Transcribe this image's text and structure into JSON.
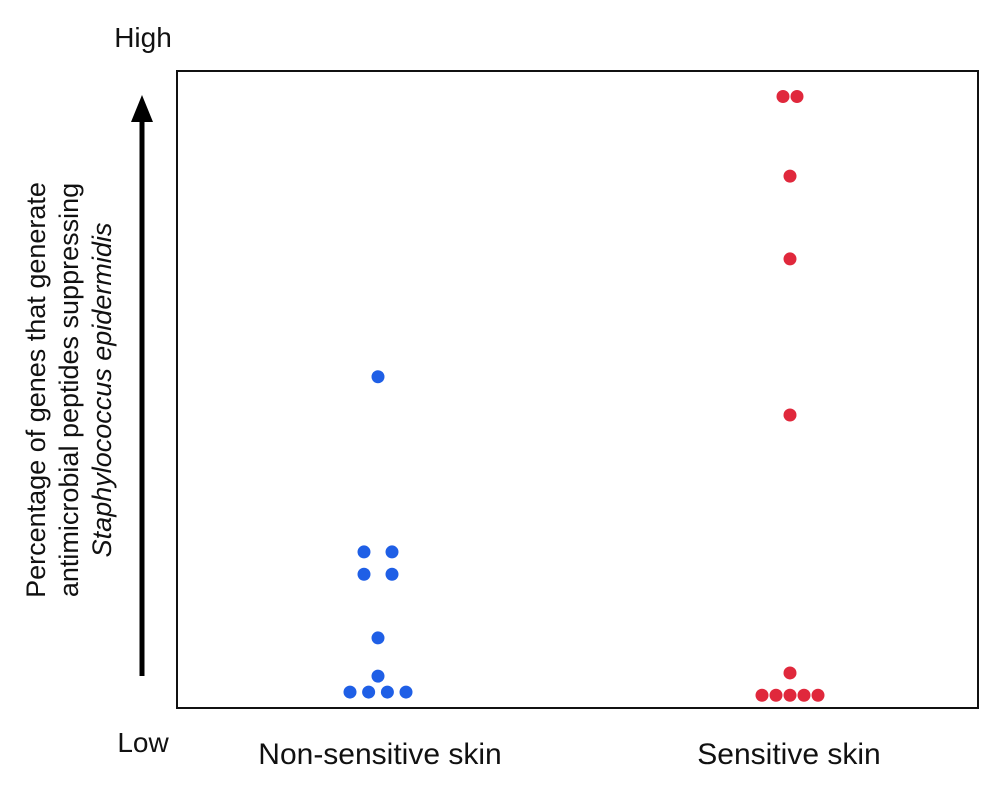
{
  "chart_data": {
    "type": "scatter",
    "categories": [
      "Non-sensitive skin",
      "Sensitive skin"
    ],
    "ylabel_lines": [
      "Percentage of genes that generate",
      "antimicrobial peptides suppressing"
    ],
    "ylabel_species": "Staphylococcus epidermidis",
    "y_high_label": "High",
    "y_low_label": "Low",
    "ylim": [
      0,
      100
    ],
    "grid": false,
    "legend": "none",
    "series": [
      {
        "category": "Non-sensitive skin",
        "color": "#1f5fe6",
        "x_offsets": [
          0,
          -1,
          1,
          -1,
          1,
          0,
          0,
          -2,
          -0.67,
          0.67,
          2
        ],
        "y": [
          52,
          24.5,
          24.5,
          21,
          21,
          11,
          5,
          2.5,
          2.5,
          2.5,
          2.5
        ]
      },
      {
        "category": "Sensitive skin",
        "color": "#e0283c",
        "x_offsets": [
          -0.5,
          0.5,
          0,
          0,
          0,
          0,
          -2,
          -1,
          0,
          1,
          2
        ],
        "y": [
          96,
          96,
          83.5,
          70.5,
          46,
          5.5,
          2,
          2,
          2,
          2,
          2
        ]
      }
    ]
  }
}
